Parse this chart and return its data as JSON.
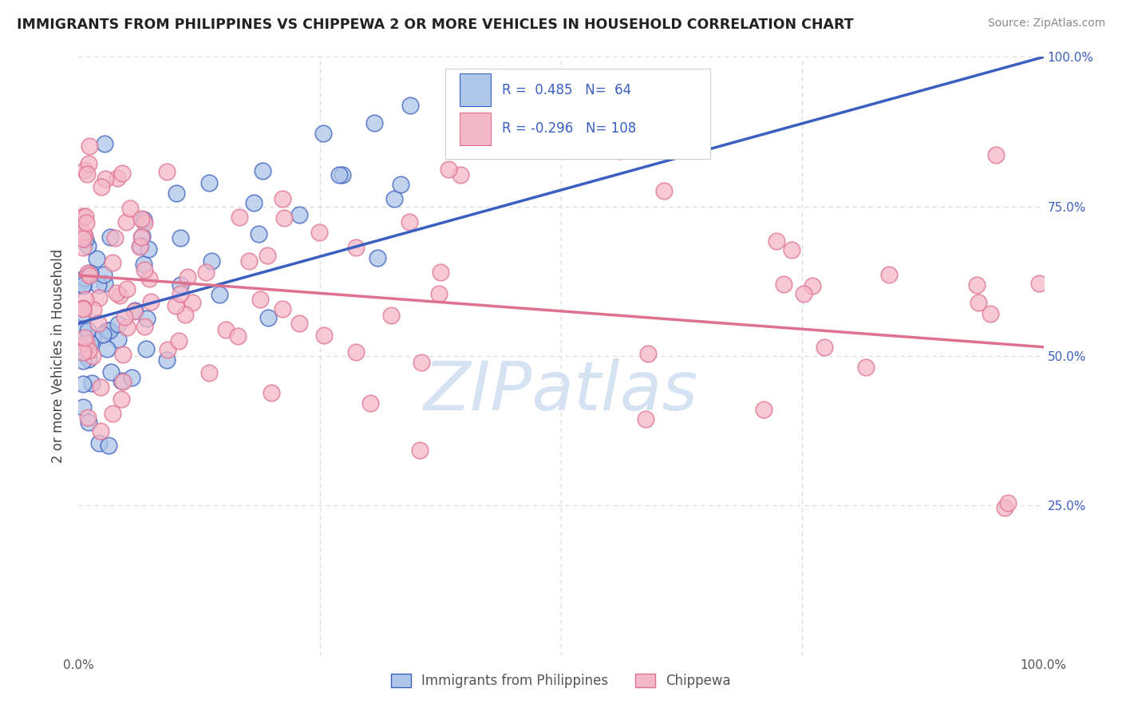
{
  "title": "IMMIGRANTS FROM PHILIPPINES VS CHIPPEWA 2 OR MORE VEHICLES IN HOUSEHOLD CORRELATION CHART",
  "source": "Source: ZipAtlas.com",
  "ylabel": "2 or more Vehicles in Household",
  "series1_name": "Immigrants from Philippines",
  "series2_name": "Chippewa",
  "series1_R": 0.485,
  "series1_N": 64,
  "series2_R": -0.296,
  "series2_N": 108,
  "series1_color": "#aec6e8",
  "series2_color": "#f4b8c8",
  "line1_color": "#3b5fc0",
  "line2_color": "#e07090",
  "watermark_color": "#d0dff0",
  "xlim": [
    0,
    1
  ],
  "ylim": [
    0,
    1
  ],
  "grid_color": "#d8d8d8",
  "background_color": "#ffffff",
  "legend_R1_text": "R =  0.485   N=  64",
  "legend_R2_text": "R = -0.296   N= 108",
  "line1_y_start": 0.555,
  "line1_y_end": 1.0,
  "line2_y_start": 0.635,
  "line2_y_end": 0.515
}
